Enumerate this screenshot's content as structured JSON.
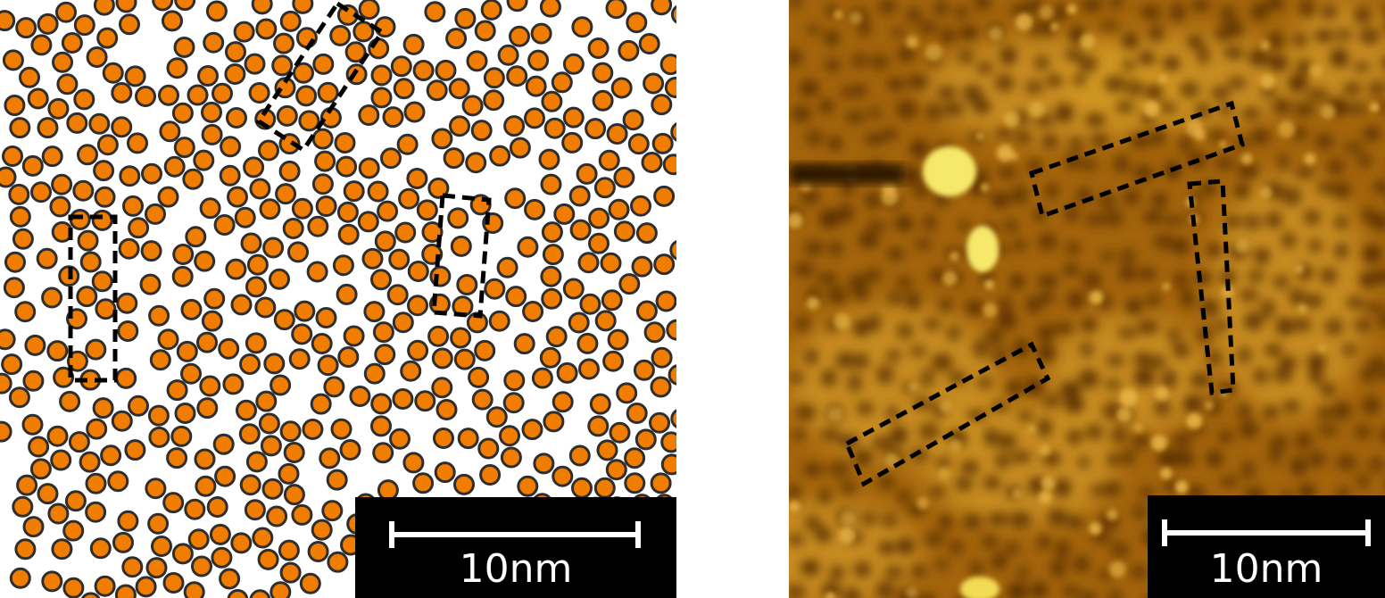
{
  "panels": {
    "left": {
      "scalebar_label": "10nm",
      "colors": {
        "particle_fill": "#f07d00",
        "particle_rim": "#2e2e2e",
        "background": "#ffffff"
      }
    },
    "right": {
      "scalebar_label": "10nm",
      "colors": {
        "dark": "#5a3003",
        "mid": "#b8740c",
        "bright": "#f6e86a"
      }
    }
  }
}
